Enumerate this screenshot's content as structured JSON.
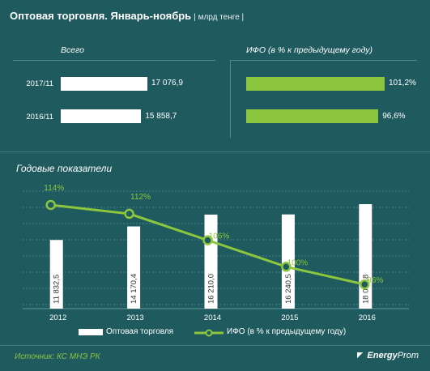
{
  "title": "Оптовая торговля. Январь-ноябрь",
  "subtitle": "| млрд тенге |",
  "top_left": {
    "label": "Всего",
    "rows": [
      {
        "year": "2017/11",
        "value": 17076.9,
        "value_text": "17 076,9"
      },
      {
        "year": "2016/11",
        "value": 15858.7,
        "value_text": "15 858,7"
      }
    ]
  },
  "top_right": {
    "label": "ИФО (в % к предыдущему году)",
    "rows": [
      {
        "year": "2017/11",
        "value": 101.2,
        "value_text": "101,2%"
      },
      {
        "year": "2016/11",
        "value": 96.6,
        "value_text": "96,6%"
      }
    ]
  },
  "annual": {
    "label": "Годовые показатели"
  },
  "chart_data": {
    "type": "bar",
    "categories": [
      "2012",
      "2013",
      "2014",
      "2015",
      "2016"
    ],
    "series": [
      {
        "name": "Оптовая торговля",
        "kind": "bar",
        "values": [
          11832.5,
          14170.4,
          16210.0,
          16240.5,
          18011.8
        ],
        "labels": [
          "11 832,5",
          "14 170,4",
          "16 210,0",
          "16 240,5",
          "18 011,8"
        ]
      },
      {
        "name": "ИФО (в % к предыдущему году)",
        "kind": "line",
        "values": [
          114,
          112,
          106,
          100,
          96
        ],
        "labels": [
          "114%",
          "112%",
          "106%",
          "100%",
          "96%"
        ]
      }
    ],
    "colors": {
      "bars": "#ffffff",
      "line": "#8cc63f"
    },
    "grid": true,
    "legend": "bottom"
  },
  "source": "Источник: КС МНЭ РК",
  "logo": {
    "bold": "Energy",
    "rest": "Prom"
  }
}
